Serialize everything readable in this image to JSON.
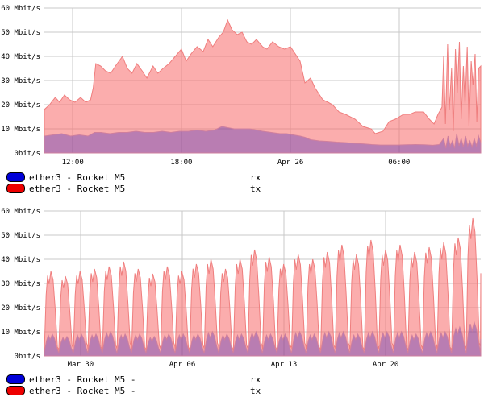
{
  "colors": {
    "tx_fill": "rgba(248,105,105,0.55)",
    "tx_stroke": "#ef7e7e",
    "rx_fill": "rgba(32,16,192,0.30)",
    "rx_stroke": "#cf7f9d",
    "grid": "#c9c9c9",
    "legend_rx": "#0000d8",
    "legend_tx": "#ee0000",
    "text": "#000000"
  },
  "legend": {
    "top": [
      {
        "color": "#0000d8",
        "label": "ether3 - Rocket M5",
        "side": "rx"
      },
      {
        "color": "#ee0000",
        "label": "ether3 - Rocket M5",
        "side": "tx"
      }
    ],
    "bottom": [
      {
        "color": "#0000d8",
        "label": "ether3 - Rocket M5 -",
        "side": "rx"
      },
      {
        "color": "#ee0000",
        "label": "ether3 - Rocket M5 -",
        "side": "tx"
      }
    ]
  },
  "chart_data": [
    {
      "type": "area",
      "ylim": [
        0,
        60
      ],
      "unit": "Mbit/s",
      "grid": true,
      "y_ticks": [
        {
          "v": 60,
          "label": "60 Mbit/s"
        },
        {
          "v": 50,
          "label": "50 Mbit/s"
        },
        {
          "v": 40,
          "label": "40 Mbit/s"
        },
        {
          "v": 30,
          "label": "30 Mbit/s"
        },
        {
          "v": 20,
          "label": "20 Mbit/s"
        },
        {
          "v": 10,
          "label": "10 Mbit/s"
        },
        {
          "v": 0,
          "label": "0bit/s"
        }
      ],
      "x_ticks": [
        {
          "pos": 6.5,
          "label": "12:00"
        },
        {
          "pos": 31.4,
          "label": "18:00"
        },
        {
          "pos": 56.4,
          "label": "Apr 26"
        },
        {
          "pos": 81.3,
          "label": "06:00"
        }
      ],
      "series": [
        {
          "name": "tx",
          "points": [
            [
              0,
              18
            ],
            [
              1.2,
              20
            ],
            [
              2.5,
              23
            ],
            [
              3.5,
              21
            ],
            [
              4.6,
              24
            ],
            [
              5.8,
              22
            ],
            [
              7,
              21
            ],
            [
              8.3,
              23
            ],
            [
              9.5,
              21
            ],
            [
              10.6,
              22
            ],
            [
              11.2,
              27
            ],
            [
              11.8,
              37
            ],
            [
              12.9,
              36
            ],
            [
              14,
              34
            ],
            [
              15.2,
              33
            ],
            [
              16.3,
              36
            ],
            [
              17.9,
              40
            ],
            [
              19,
              35
            ],
            [
              20.1,
              33
            ],
            [
              21.2,
              37
            ],
            [
              22.4,
              34
            ],
            [
              23.5,
              31
            ],
            [
              24.9,
              36
            ],
            [
              26,
              33
            ],
            [
              27.2,
              35
            ],
            [
              28.6,
              37
            ],
            [
              30,
              40
            ],
            [
              31.4,
              43
            ],
            [
              32.5,
              38
            ],
            [
              33.6,
              41
            ],
            [
              35,
              44
            ],
            [
              36.4,
              42
            ],
            [
              37.5,
              47
            ],
            [
              38.6,
              44
            ],
            [
              40,
              48
            ],
            [
              41,
              50
            ],
            [
              42,
              55
            ],
            [
              43,
              51
            ],
            [
              44.2,
              49
            ],
            [
              45.3,
              50
            ],
            [
              46.4,
              46
            ],
            [
              47.5,
              45
            ],
            [
              48.6,
              47
            ],
            [
              50,
              44
            ],
            [
              51,
              43
            ],
            [
              52.3,
              46
            ],
            [
              53.7,
              44
            ],
            [
              55,
              43
            ],
            [
              56.4,
              44
            ],
            [
              57.5,
              41
            ],
            [
              58.6,
              38
            ],
            [
              59.7,
              29
            ],
            [
              61,
              31
            ],
            [
              62,
              27
            ],
            [
              63.8,
              22
            ],
            [
              65,
              21
            ],
            [
              66,
              20
            ],
            [
              67.5,
              17
            ],
            [
              69,
              16
            ],
            [
              71.2,
              14
            ],
            [
              73,
              11
            ],
            [
              74.9,
              10
            ],
            [
              75.8,
              8
            ],
            [
              77.6,
              9
            ],
            [
              79,
              13
            ],
            [
              80.4,
              14
            ],
            [
              82.3,
              16
            ],
            [
              83.7,
              16
            ],
            [
              85,
              17
            ],
            [
              86.9,
              17
            ],
            [
              88.2,
              14
            ],
            [
              89.3,
              12
            ],
            [
              90.2,
              16
            ],
            [
              91.1,
              19
            ],
            [
              91.5,
              40
            ],
            [
              91.9,
              12
            ],
            [
              92.4,
              45
            ],
            [
              92.8,
              18
            ],
            [
              93.3,
              35
            ],
            [
              93.7,
              9
            ],
            [
              94.2,
              43
            ],
            [
              94.6,
              25
            ],
            [
              95.1,
              46
            ],
            [
              95.5,
              14
            ],
            [
              96,
              36
            ],
            [
              96.4,
              20
            ],
            [
              96.9,
              44
            ],
            [
              97.3,
              11
            ],
            [
              97.8,
              38
            ],
            [
              98.2,
              28
            ],
            [
              98.7,
              41
            ],
            [
              99.1,
              13
            ],
            [
              99.5,
              35
            ],
            [
              100,
              36
            ]
          ]
        },
        {
          "name": "rx",
          "points": [
            [
              0,
              7
            ],
            [
              2,
              7.5
            ],
            [
              4,
              8
            ],
            [
              6,
              7
            ],
            [
              8,
              7.5
            ],
            [
              10,
              7
            ],
            [
              11.5,
              8.5
            ],
            [
              13,
              8.5
            ],
            [
              15,
              8
            ],
            [
              17,
              8.5
            ],
            [
              19,
              8.5
            ],
            [
              21,
              9
            ],
            [
              23,
              8.5
            ],
            [
              25,
              8.5
            ],
            [
              27,
              9
            ],
            [
              29,
              8.5
            ],
            [
              31,
              9
            ],
            [
              33,
              9
            ],
            [
              35,
              9.5
            ],
            [
              37,
              9
            ],
            [
              39,
              9.5
            ],
            [
              40.7,
              11
            ],
            [
              42,
              10.5
            ],
            [
              43.5,
              10
            ],
            [
              45.3,
              10
            ],
            [
              47,
              10
            ],
            [
              48.6,
              9.5
            ],
            [
              50,
              9
            ],
            [
              52,
              8.5
            ],
            [
              54,
              8
            ],
            [
              55.5,
              8
            ],
            [
              57,
              7.5
            ],
            [
              58.6,
              7
            ],
            [
              59.7,
              6.5
            ],
            [
              61,
              5.5
            ],
            [
              63,
              5
            ],
            [
              65,
              4.8
            ],
            [
              67,
              4.5
            ],
            [
              69,
              4.3
            ],
            [
              71,
              4
            ],
            [
              73,
              3.8
            ],
            [
              75,
              3.5
            ],
            [
              77,
              3.3
            ],
            [
              79,
              3.3
            ],
            [
              81,
              3.3
            ],
            [
              83,
              3.4
            ],
            [
              85,
              3.5
            ],
            [
              87,
              3.4
            ],
            [
              89,
              3.2
            ],
            [
              90.5,
              3.5
            ],
            [
              91.5,
              6
            ],
            [
              92,
              2
            ],
            [
              92.5,
              7
            ],
            [
              93,
              3
            ],
            [
              93.5,
              5
            ],
            [
              94,
              2
            ],
            [
              94.5,
              8
            ],
            [
              95,
              3
            ],
            [
              95.5,
              6
            ],
            [
              96,
              2.5
            ],
            [
              96.5,
              7
            ],
            [
              97,
              3
            ],
            [
              97.5,
              5
            ],
            [
              98,
              2.5
            ],
            [
              98.5,
              6
            ],
            [
              99,
              3
            ],
            [
              99.5,
              7
            ],
            [
              100,
              4
            ]
          ]
        }
      ]
    },
    {
      "type": "area",
      "ylim": [
        0,
        60
      ],
      "unit": "Mbit/s",
      "grid": true,
      "y_ticks": [
        {
          "v": 60,
          "label": "60 Mbit/s"
        },
        {
          "v": 50,
          "label": "50 Mbit/s"
        },
        {
          "v": 40,
          "label": "40 Mbit/s"
        },
        {
          "v": 30,
          "label": "30 Mbit/s"
        },
        {
          "v": 20,
          "label": "20 Mbit/s"
        },
        {
          "v": 10,
          "label": "10 Mbit/s"
        },
        {
          "v": 0,
          "label": "0bit/s"
        }
      ],
      "x_ticks": [
        {
          "pos": 8.3,
          "label": "Mar 30"
        },
        {
          "pos": 31.6,
          "label": "Apr 06"
        },
        {
          "pos": 54.9,
          "label": "Apr 13"
        },
        {
          "pos": 78.2,
          "label": "Apr 20"
        }
      ],
      "daily": {
        "days": 30,
        "tx_peaks": [
          35,
          33,
          35,
          36,
          37,
          39,
          36,
          34,
          37,
          35,
          38,
          40,
          36,
          40,
          44,
          41,
          38,
          42,
          40,
          43,
          46,
          42,
          48,
          44,
          46,
          43,
          45,
          47,
          49,
          57
        ],
        "rx_peaks": [
          9,
          8,
          9,
          9,
          10,
          9,
          9,
          8,
          9,
          9,
          9,
          10,
          9,
          9,
          10,
          9,
          9,
          10,
          9,
          10,
          10,
          9,
          10,
          10,
          10,
          9,
          10,
          10,
          12,
          14
        ],
        "tx_valley": 2.5,
        "rx_valley": 1.5
      }
    }
  ]
}
